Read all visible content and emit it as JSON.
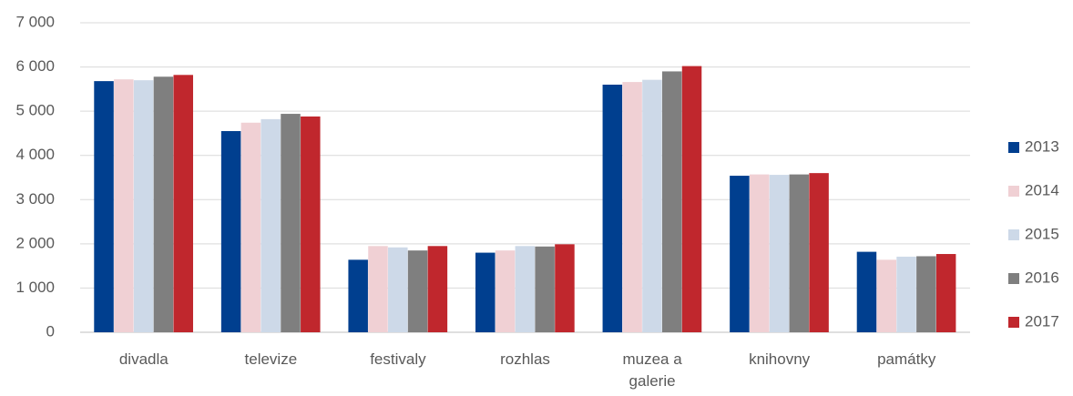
{
  "chart_data": {
    "type": "bar",
    "categories": [
      "divadla",
      "televize",
      "festivaly",
      "rozhlas",
      "muzea a galerie",
      "knihovny",
      "památky"
    ],
    "series": [
      {
        "name": "2013",
        "color": "#003f8f",
        "values": [
          5680,
          4550,
          1640,
          1800,
          5600,
          3540,
          1820
        ]
      },
      {
        "name": "2014",
        "color": "#f0d0d4",
        "values": [
          5720,
          4740,
          1950,
          1850,
          5660,
          3570,
          1640
        ]
      },
      {
        "name": "2015",
        "color": "#cdd9e8",
        "values": [
          5700,
          4820,
          1920,
          1950,
          5710,
          3560,
          1710
        ]
      },
      {
        "name": "2016",
        "color": "#7f7f7f",
        "values": [
          5780,
          4940,
          1850,
          1940,
          5900,
          3570,
          1720
        ]
      },
      {
        "name": "2017",
        "color": "#c0272d",
        "values": [
          5820,
          4880,
          1950,
          1990,
          6020,
          3600,
          1770
        ]
      }
    ],
    "ylim": [
      0,
      7000
    ],
    "yticks": [
      0,
      {
        "value": 1000,
        "label": "1 000"
      },
      {
        "value": 2000,
        "label": "2 000"
      },
      {
        "value": 3000,
        "label": "3 000"
      },
      {
        "value": 4000,
        "label": "4 000"
      },
      {
        "value": 5000,
        "label": "5 000"
      },
      {
        "value": 6000,
        "label": "6 000"
      },
      {
        "value": 7000,
        "label": "7 000"
      }
    ],
    "grid": true,
    "legend": "right"
  }
}
